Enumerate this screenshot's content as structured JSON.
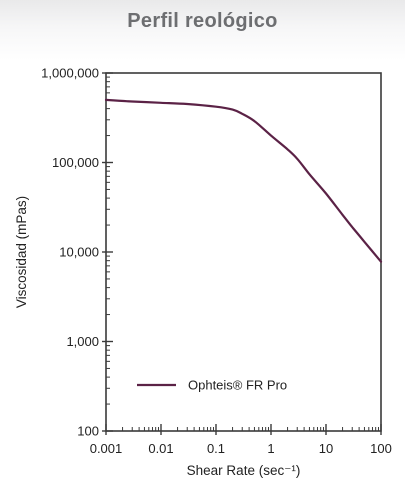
{
  "colors": {
    "series": "#5b2246",
    "axis": "#3a3a3a",
    "title": "#6d6e71"
  },
  "chart_data": {
    "type": "line",
    "title": "Perfil reológico",
    "xlabel": "Shear Rate (sec⁻¹)",
    "ylabel": "Viscosidad (mPas)",
    "x_scale": "log",
    "y_scale": "log",
    "xlim": [
      0.001,
      100
    ],
    "ylim": [
      100,
      1000000
    ],
    "x_ticks": [
      "0.001",
      "0.01",
      "0.1",
      "1",
      "10",
      "100"
    ],
    "x_tick_values": [
      0.001,
      0.01,
      0.1,
      1,
      10,
      100
    ],
    "y_ticks": [
      "1,000,000",
      "100,000",
      "10,000",
      "1,000",
      "100"
    ],
    "y_tick_values": [
      1000000,
      100000,
      10000,
      1000,
      100
    ],
    "grid": false,
    "legend_position": "bottom-left",
    "series": [
      {
        "name": "Ophteis® FR Pro",
        "x": [
          0.001,
          0.003,
          0.01,
          0.03,
          0.1,
          0.2,
          0.3,
          0.5,
          1,
          2,
          3,
          5,
          10,
          20,
          30,
          50,
          100
        ],
        "y": [
          500000,
          480000,
          465000,
          450000,
          420000,
          390000,
          350000,
          290000,
          200000,
          140000,
          110000,
          74000,
          45000,
          26000,
          19000,
          13000,
          7800
        ]
      }
    ]
  }
}
